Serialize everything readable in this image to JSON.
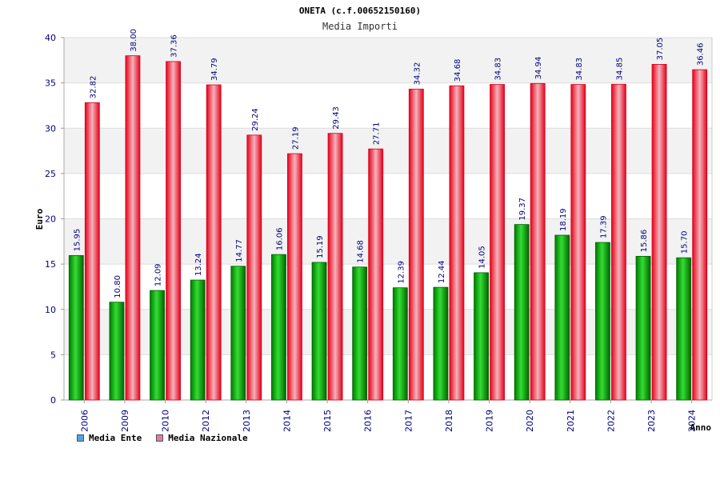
{
  "header": {
    "title": "ONETA (c.f.00652150160)",
    "subtitle": "Media Importi"
  },
  "legend": {
    "items": [
      {
        "label": "Media Ente",
        "color": "#4fa3e0"
      },
      {
        "label": "Media Nazionale",
        "color": "#e07aa8"
      }
    ]
  },
  "chart_data": {
    "type": "bar",
    "title": "ONETA (c.f.00652150160)",
    "subtitle": "Media Importi",
    "xlabel": "Anno",
    "ylabel": "Euro",
    "ylim": [
      0,
      40
    ],
    "yticks": [
      0,
      5,
      10,
      15,
      20,
      25,
      30,
      35,
      40
    ],
    "grid": true,
    "legend_position": "bottom-left",
    "categories": [
      "2006",
      "2009",
      "2010",
      "2012",
      "2013",
      "2014",
      "2015",
      "2016",
      "2017",
      "2018",
      "2019",
      "2020",
      "2021",
      "2022",
      "2023",
      "2024"
    ],
    "series": [
      {
        "name": "Media Ente",
        "color": "#00a000",
        "values": [
          15.95,
          10.8,
          12.09,
          13.24,
          14.77,
          16.06,
          15.19,
          14.68,
          12.39,
          12.44,
          14.05,
          19.37,
          18.19,
          17.39,
          15.86,
          15.7
        ],
        "labels": [
          "15.95",
          "10.80",
          "12.09",
          "13.24",
          "14.77",
          "16.06",
          "15.19",
          "14.68",
          "12.39",
          "12.44",
          "14.05",
          "19.37",
          "18.19",
          "17.39",
          "15.86",
          "15.70"
        ]
      },
      {
        "name": "Media Nazionale",
        "color": "#e8202a",
        "values": [
          32.82,
          38.0,
          37.36,
          34.79,
          29.24,
          27.19,
          29.43,
          27.71,
          34.32,
          34.68,
          34.83,
          34.94,
          34.83,
          34.85,
          37.05,
          36.46
        ],
        "labels": [
          "32.82",
          "38.00",
          "37.36",
          "34.79",
          "29.24",
          "27.19",
          "29.43",
          "27.71",
          "34.32",
          "34.68",
          "34.83",
          "34.94",
          "34.83",
          "34.85",
          "37.05",
          "36.46"
        ]
      }
    ]
  }
}
